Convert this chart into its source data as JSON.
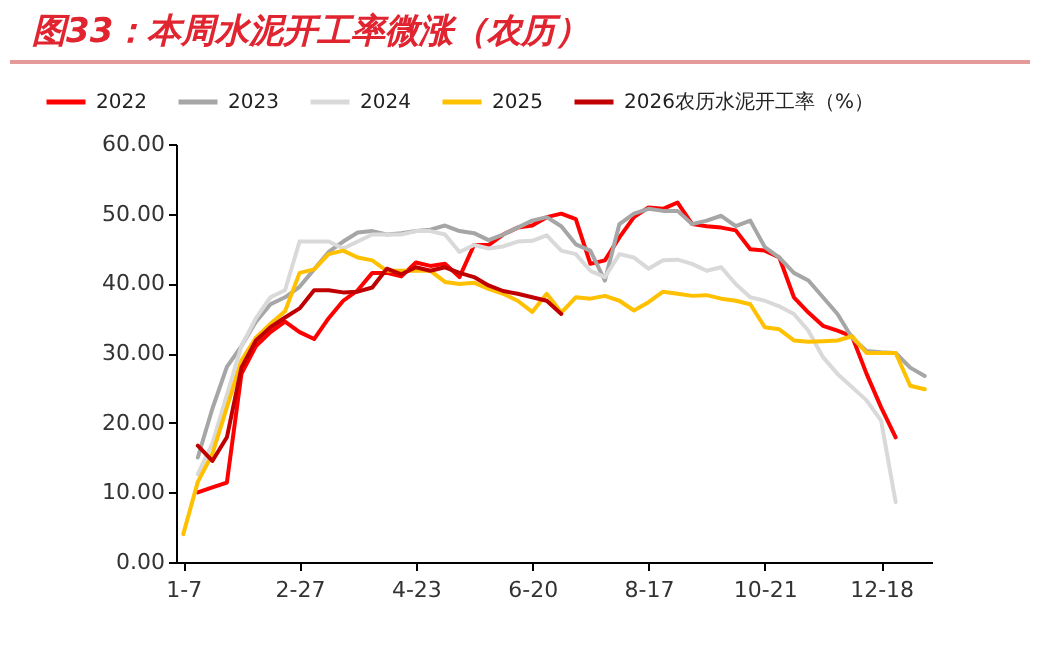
{
  "chart_data": {
    "type": "line",
    "title": "图33：本周水泥开工率微涨（农历）",
    "categories": [
      "1-7",
      null,
      null,
      null,
      null,
      null,
      null,
      null,
      "2-27",
      null,
      null,
      null,
      null,
      null,
      null,
      null,
      "4-23",
      null,
      null,
      null,
      null,
      null,
      null,
      null,
      "6-20",
      null,
      null,
      null,
      null,
      null,
      null,
      null,
      "8-17",
      null,
      null,
      null,
      null,
      null,
      null,
      null,
      "10-21",
      null,
      null,
      null,
      null,
      null,
      null,
      null,
      "12-18",
      null,
      null,
      null
    ],
    "series": [
      {
        "name": "2022",
        "color": "#ff0000",
        "values": [
          null,
          10.0,
          10.7,
          11.4,
          27,
          31,
          33,
          34.5,
          33,
          32,
          35,
          37.5,
          39,
          41.5,
          41.5,
          41,
          43,
          42.5,
          42.8,
          40.9,
          45.5,
          45.5,
          47,
          48,
          48.3,
          49.5,
          50,
          49.2,
          42.8,
          43.3,
          46.6,
          49.5,
          50.9,
          50.7,
          51.6,
          48.5,
          48.2,
          48,
          47.6,
          44.9,
          44.7,
          43.7,
          38,
          35.8,
          33.9,
          33.2,
          32.4,
          27,
          22.2,
          17.9,
          null,
          null
        ]
      },
      {
        "name": "2023",
        "color": "#a6a6a6",
        "values": [
          null,
          15,
          22,
          28,
          31,
          34.5,
          37,
          38,
          39.5,
          42,
          44.5,
          46,
          47.3,
          47.5,
          47,
          47.2,
          47.5,
          47.7,
          48.3,
          47.5,
          47.2,
          46.2,
          47,
          48,
          49,
          49.5,
          48.2,
          45.6,
          44.7,
          40.4,
          48.5,
          50,
          50.7,
          50.4,
          50.4,
          48.5,
          49,
          49.7,
          48.2,
          49,
          45.2,
          43.7,
          41.5,
          40.4,
          38,
          35.6,
          32.2,
          30.3,
          30.1,
          30,
          27.9,
          26.7
        ]
      },
      {
        "name": "2024",
        "color": "#d9d9d9",
        "values": [
          null,
          12.6,
          17,
          24,
          31,
          35,
          38,
          39,
          46,
          46,
          46,
          45,
          46,
          47,
          47,
          47,
          47.5,
          47.5,
          47,
          44.5,
          45.5,
          45,
          45.3,
          46,
          46.1,
          46.9,
          44.7,
          44.2,
          41.8,
          40.9,
          44.2,
          43.7,
          42.1,
          43.3,
          43.4,
          42.8,
          41.8,
          42.3,
          39.9,
          38,
          37.5,
          36.7,
          35.6,
          33.2,
          29.4,
          27,
          25.1,
          23.2,
          20.3,
          8.6,
          null,
          null
        ]
      },
      {
        "name": "2025",
        "color": "#ffc000",
        "values": [
          4,
          11.5,
          15.5,
          22.2,
          28.9,
          32.2,
          34.2,
          36,
          41.5,
          42,
          44.2,
          44.7,
          43.7,
          43.3,
          41.8,
          41.8,
          41.8,
          41.8,
          40.2,
          39.9,
          40.1,
          39.2,
          38.5,
          37.5,
          35.9,
          38.5,
          35.8,
          38,
          37.8,
          38.2,
          37.5,
          36.1,
          37.3,
          38.8,
          38.5,
          38.2,
          38.3,
          37.8,
          37.5,
          37,
          33.7,
          33.4,
          31.8,
          31.6,
          31.7,
          31.8,
          32.4,
          30,
          30,
          30,
          25.3,
          24.8
        ]
      },
      {
        "name": "2026农历水泥开工率（%）",
        "color": "#c00000",
        "values": [
          null,
          16.7,
          14.5,
          17.9,
          27.9,
          31.8,
          33.7,
          35.1,
          36.4,
          39,
          39,
          38.7,
          38.8,
          39.4,
          42.1,
          41.3,
          42.3,
          41.8,
          42.3,
          41.5,
          40.9,
          39.7,
          38.9,
          38.5,
          38,
          37.5,
          35.6,
          null,
          null,
          null,
          null,
          null,
          null,
          null,
          null,
          null,
          null,
          null,
          null,
          null,
          null,
          null,
          null,
          null,
          null,
          null,
          null,
          null,
          null,
          null,
          null,
          null
        ]
      }
    ],
    "ylim": [
      0,
      60
    ],
    "yticks": [
      {
        "value": 0,
        "label": "0.00"
      },
      {
        "value": 10,
        "label": "10.00"
      },
      {
        "value": 20,
        "label": "20.00"
      },
      {
        "value": 30,
        "label": "30.00"
      },
      {
        "value": 40,
        "label": "40.00"
      },
      {
        "value": 50,
        "label": "50.00"
      },
      {
        "value": 60,
        "label": "60.00"
      }
    ],
    "legend": "top",
    "grid": false,
    "marker": "none",
    "line_style": "solid"
  }
}
